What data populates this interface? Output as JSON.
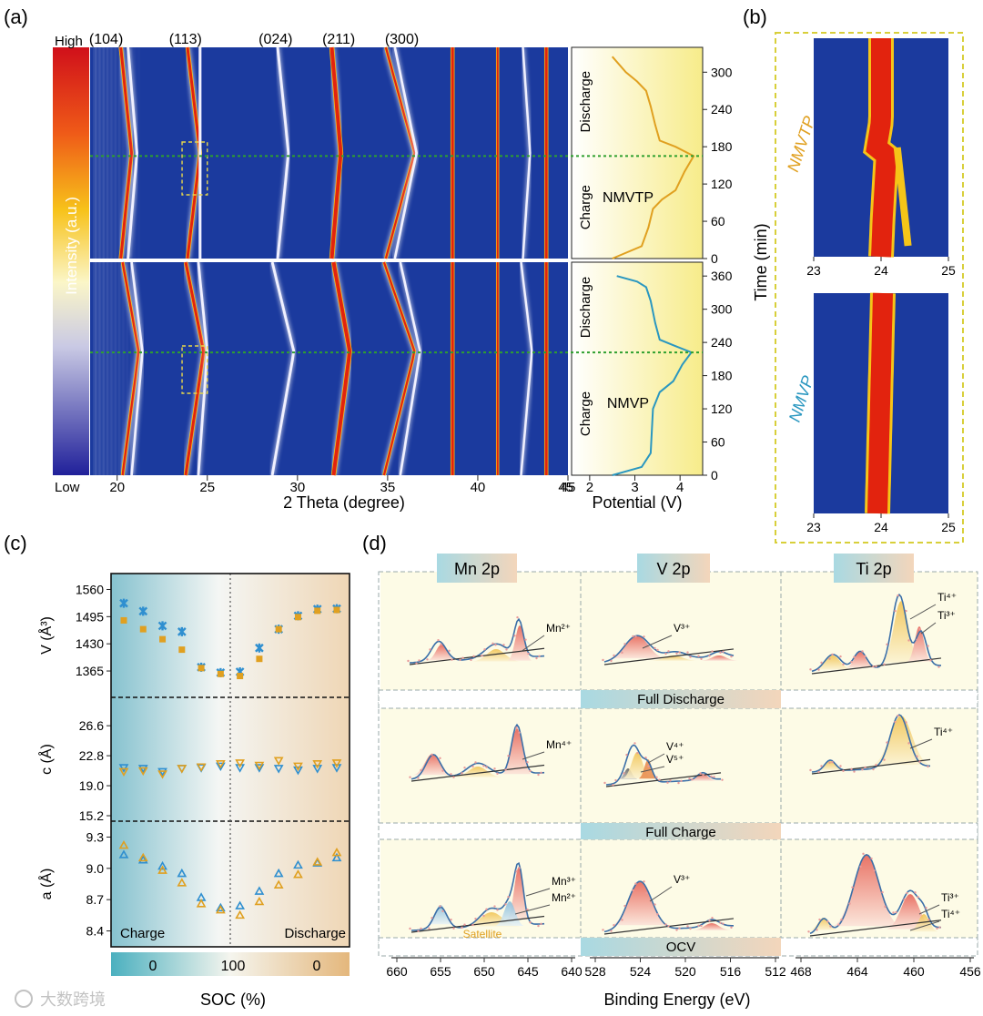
{
  "panel_labels": {
    "a": "(a)",
    "b": "(b)",
    "c": "(c)",
    "d": "(d)"
  },
  "colors": {
    "map_bg": "#1b3a9e",
    "hot": "#e2230e",
    "warm": "#f5c518",
    "nmvtp": "#e0a020",
    "nmvp": "#2a97c0",
    "dashed_green": "#2fa02f"
  },
  "chart_data": [
    {
      "type": "heatmap",
      "panel": "a",
      "title": "",
      "colorbar": {
        "label": "Intensity (a.u.)",
        "high": "High",
        "low": "Low"
      },
      "peak_labels": [
        "(104)",
        "(113)",
        "(024)",
        "(211)",
        "(300)"
      ],
      "xlabel": "2 Theta (degree)",
      "xticks": [
        "20",
        "25",
        "30",
        "35",
        "40",
        "45"
      ],
      "xlim": [
        18.5,
        45
      ],
      "top_sample": "NMVTP",
      "bottom_sample": "NMVP",
      "potential": {
        "xlabel": "Potential (V)",
        "xticks": [
          "2",
          "3",
          "4"
        ],
        "xlim": [
          1.6,
          4.5
        ],
        "top": {
          "label": "NMVTP",
          "segments": [
            "Charge",
            "Discharge"
          ],
          "yticks": [
            "0",
            "60",
            "120",
            "180",
            "240",
            "300"
          ],
          "ylim": [
            0,
            340
          ],
          "turn_time": 165,
          "curve": [
            [
              2.5,
              0
            ],
            [
              3.15,
              20
            ],
            [
              3.3,
              50
            ],
            [
              3.4,
              80
            ],
            [
              3.6,
              95
            ],
            [
              3.9,
              110
            ],
            [
              4.1,
              140
            ],
            [
              4.3,
              165
            ],
            [
              3.9,
              180
            ],
            [
              3.55,
              190
            ],
            [
              3.45,
              215
            ],
            [
              3.35,
              245
            ],
            [
              3.25,
              270
            ],
            [
              3.05,
              285
            ],
            [
              2.8,
              300
            ],
            [
              2.5,
              325
            ]
          ]
        },
        "bottom": {
          "label": "NMVP",
          "segments": [
            "Charge",
            "Discharge"
          ],
          "yticks": [
            "0",
            "60",
            "120",
            "180",
            "240",
            "300",
            "360"
          ],
          "ylim": [
            0,
            385
          ],
          "turn_time": 222,
          "curve": [
            [
              2.5,
              0
            ],
            [
              3.15,
              15
            ],
            [
              3.35,
              40
            ],
            [
              3.4,
              120
            ],
            [
              3.55,
              150
            ],
            [
              3.85,
              170
            ],
            [
              4.05,
              200
            ],
            [
              4.25,
              222
            ],
            [
              3.85,
              235
            ],
            [
              3.55,
              245
            ],
            [
              3.45,
              275
            ],
            [
              3.35,
              315
            ],
            [
              3.25,
              340
            ],
            [
              3.05,
              350
            ],
            [
              2.6,
              360
            ]
          ]
        }
      }
    },
    {
      "type": "heatmap",
      "panel": "b",
      "ylabel": "Time (min)",
      "plots": [
        {
          "label": "NMVTP",
          "xticks": [
            "23",
            "24",
            "25"
          ]
        },
        {
          "label": "NMVP",
          "xticks": [
            "23",
            "24",
            "25"
          ]
        }
      ]
    },
    {
      "type": "scatter",
      "panel": "c",
      "xlabel": "SOC (%)",
      "soc_bar": [
        "0",
        "100",
        "0"
      ],
      "regions": [
        "Charge",
        "Discharge"
      ],
      "subplots": [
        {
          "ylabel": "V (Å³)",
          "yticks": [
            "1560",
            "1495",
            "1430",
            "1365"
          ],
          "ylim": [
            1315,
            1585
          ],
          "series": [
            {
              "marker": "star",
              "color": "#2f8fd0",
              "values": [
                1527,
                1508,
                1473,
                1459,
                1374,
                1361,
                1363,
                1420,
                1465,
                1497,
                1513,
                1514
              ]
            },
            {
              "marker": "square",
              "color": "#e0a020",
              "values": [
                1486,
                1465,
                1441,
                1416,
                1372,
                1358,
                1353,
                1394,
                1465,
                1494,
                1509,
                1511
              ]
            }
          ]
        },
        {
          "ylabel": "c (Å)",
          "yticks": [
            "26.6",
            "22.8",
            "19.0",
            "15.2"
          ],
          "ylim": [
            15.2,
            29.5
          ],
          "series": [
            {
              "marker": "triangle-down",
              "color": "#2f8fd0",
              "values": [
                21.3,
                21.2,
                20.8,
                21.2,
                21.3,
                21.5,
                21.3,
                21.3,
                21.2,
                21.0,
                21.2,
                21.3
              ]
            },
            {
              "marker": "triangle-down",
              "color": "#e0a020",
              "values": [
                20.8,
                20.9,
                20.5,
                21.2,
                21.4,
                21.8,
                21.9,
                21.6,
                22.2,
                21.5,
                21.8,
                21.9
              ]
            }
          ]
        },
        {
          "ylabel": "a (Å)",
          "yticks": [
            "9.3",
            "9.0",
            "8.7",
            "8.4"
          ],
          "ylim": [
            8.3,
            9.4
          ],
          "series": [
            {
              "marker": "triangle",
              "color": "#2f8fd0",
              "values": [
                9.13,
                9.08,
                9.02,
                8.95,
                8.72,
                8.62,
                8.64,
                8.78,
                8.95,
                9.03,
                9.05,
                9.1
              ]
            },
            {
              "marker": "triangle",
              "color": "#e0a020",
              "values": [
                9.22,
                9.1,
                8.98,
                8.86,
                8.66,
                8.6,
                8.55,
                8.68,
                8.84,
                8.94,
                9.06,
                9.15
              ]
            }
          ]
        }
      ]
    },
    {
      "type": "line",
      "panel": "d",
      "xlabel": "Binding Energy (eV)",
      "columns": [
        {
          "title": "Mn 2p",
          "xticks": [
            "660",
            "655",
            "650",
            "645",
            "640"
          ]
        },
        {
          "title": "V 2p",
          "xticks": [
            "528",
            "524",
            "520",
            "516",
            "512"
          ]
        },
        {
          "title": "Ti 2p",
          "xticks": [
            "468",
            "464",
            "460",
            "456"
          ]
        }
      ],
      "row_labels": [
        "Full Discharge",
        "Full Charge",
        "OCV"
      ],
      "annotations": {
        "mn_discharge": "Mn²⁺",
        "v_discharge": "V³⁺",
        "ti_discharge_1": "Ti⁴⁺",
        "ti_discharge_2": "Ti³⁺",
        "mn_charge": "Mn⁴⁺",
        "v_charge_1": "V⁴⁺",
        "v_charge_2": "V⁵⁺",
        "ti_charge": "Ti⁴⁺",
        "mn_ocv_1": "Mn³⁺",
        "mn_ocv_2": "Mn²⁺",
        "mn_ocv_sat": "Satellite",
        "v_ocv": "V³⁺",
        "ti_ocv_1": "Ti³⁺",
        "ti_ocv_2": "Ti⁴⁺"
      }
    }
  ],
  "watermark": "大数跨境"
}
